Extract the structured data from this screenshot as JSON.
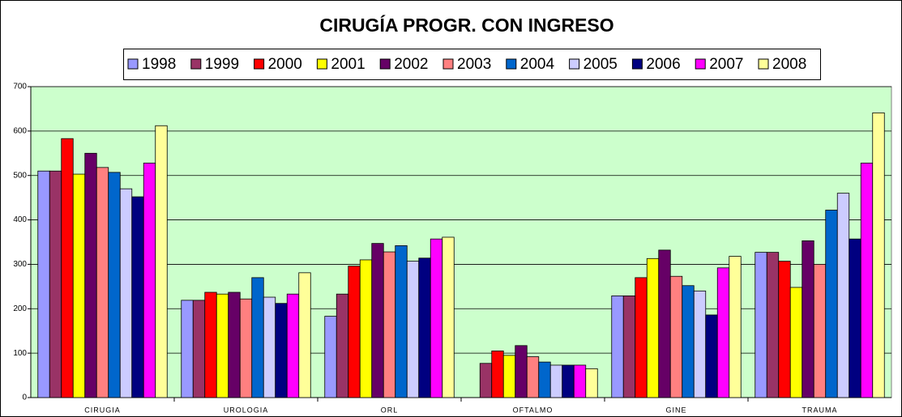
{
  "chart_data": {
    "type": "bar",
    "title": "CIRUGÍA PROGR. CON INGRESO",
    "categories": [
      "CIRUGIA",
      "UROLOGIA",
      "ORL",
      "OFTALMO",
      "GINE",
      "TRAUMA"
    ],
    "series": [
      {
        "name": "1998",
        "color": "#9999ff",
        "values": [
          510,
          219,
          183,
          null,
          229,
          327
        ]
      },
      {
        "name": "1999",
        "color": "#993366",
        "values": [
          510,
          219,
          233,
          77,
          229,
          327
        ]
      },
      {
        "name": "2000",
        "color": "#ff0000",
        "values": [
          583,
          237,
          296,
          105,
          270,
          307
        ]
      },
      {
        "name": "2001",
        "color": "#ffff00",
        "values": [
          503,
          233,
          310,
          95,
          313,
          248
        ]
      },
      {
        "name": "2002",
        "color": "#660066",
        "values": [
          550,
          237,
          347,
          117,
          332,
          353
        ]
      },
      {
        "name": "2003",
        "color": "#ff8080",
        "values": [
          518,
          222,
          328,
          92,
          273,
          300
        ]
      },
      {
        "name": "2004",
        "color": "#0066cc",
        "values": [
          507,
          270,
          342,
          80,
          252,
          422
        ]
      },
      {
        "name": "2005",
        "color": "#ccccff",
        "values": [
          470,
          226,
          307,
          73,
          240,
          460
        ]
      },
      {
        "name": "2006",
        "color": "#000080",
        "values": [
          452,
          212,
          314,
          73,
          186,
          357
        ]
      },
      {
        "name": "2007",
        "color": "#ff00ff",
        "values": [
          528,
          233,
          357,
          73,
          292,
          528
        ]
      },
      {
        "name": "2008",
        "color": "#ffff99",
        "values": [
          612,
          281,
          361,
          65,
          318,
          641
        ]
      }
    ],
    "ylim": [
      0,
      700
    ],
    "yticks": [
      0,
      100,
      200,
      300,
      400,
      500,
      600,
      700
    ],
    "grid": true,
    "plot_background": "#ccffcc"
  }
}
